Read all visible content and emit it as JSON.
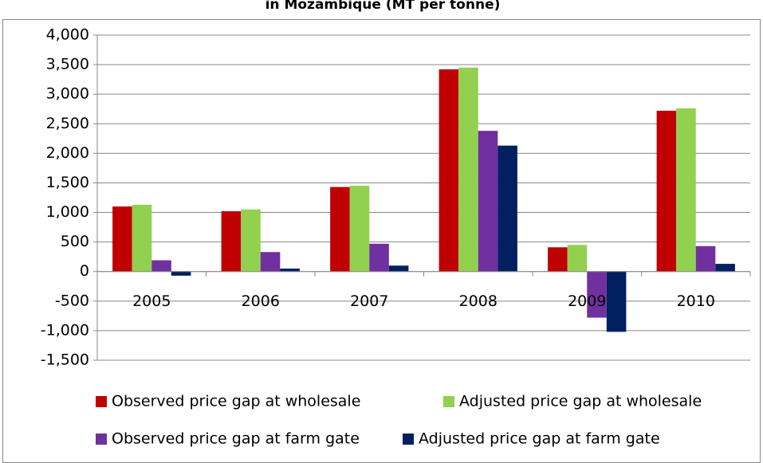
{
  "chart_data": {
    "type": "bar",
    "title": "in Mozambique (MT per tonne)",
    "categories": [
      "2005",
      "2006",
      "2007",
      "2008",
      "2009",
      "2010"
    ],
    "series": [
      {
        "name": "Observed price gap at wholesale",
        "color": "#c00000",
        "values": [
          1100,
          1020,
          1430,
          3420,
          410,
          2720
        ]
      },
      {
        "name": "Adjusted price gap at wholesale",
        "color": "#92d050",
        "values": [
          1130,
          1050,
          1450,
          3450,
          450,
          2760
        ]
      },
      {
        "name": "Observed price gap at farm gate",
        "color": "#7030a0",
        "values": [
          190,
          330,
          470,
          2380,
          -780,
          430
        ]
      },
      {
        "name": "Adjusted price gap at farm gate",
        "color": "#002060",
        "values": [
          -70,
          50,
          100,
          2130,
          -1020,
          130
        ]
      }
    ],
    "ylim": [
      -1500,
      4000
    ],
    "yticks": [
      {
        "value": -1500,
        "label": "-1,500"
      },
      {
        "value": -1000,
        "label": "-1,000"
      },
      -500,
      0,
      500,
      {
        "value": 1000,
        "label": "1,000"
      },
      {
        "value": 1500,
        "label": "1,500"
      },
      {
        "value": 2000,
        "label": "2,000"
      },
      {
        "value": 2500,
        "label": "2,500"
      },
      {
        "value": 3000,
        "label": "3,000"
      },
      {
        "value": 3500,
        "label": "3,500"
      },
      {
        "value": 4000,
        "label": "4,000"
      }
    ],
    "grid": true,
    "legend": "bottom"
  }
}
